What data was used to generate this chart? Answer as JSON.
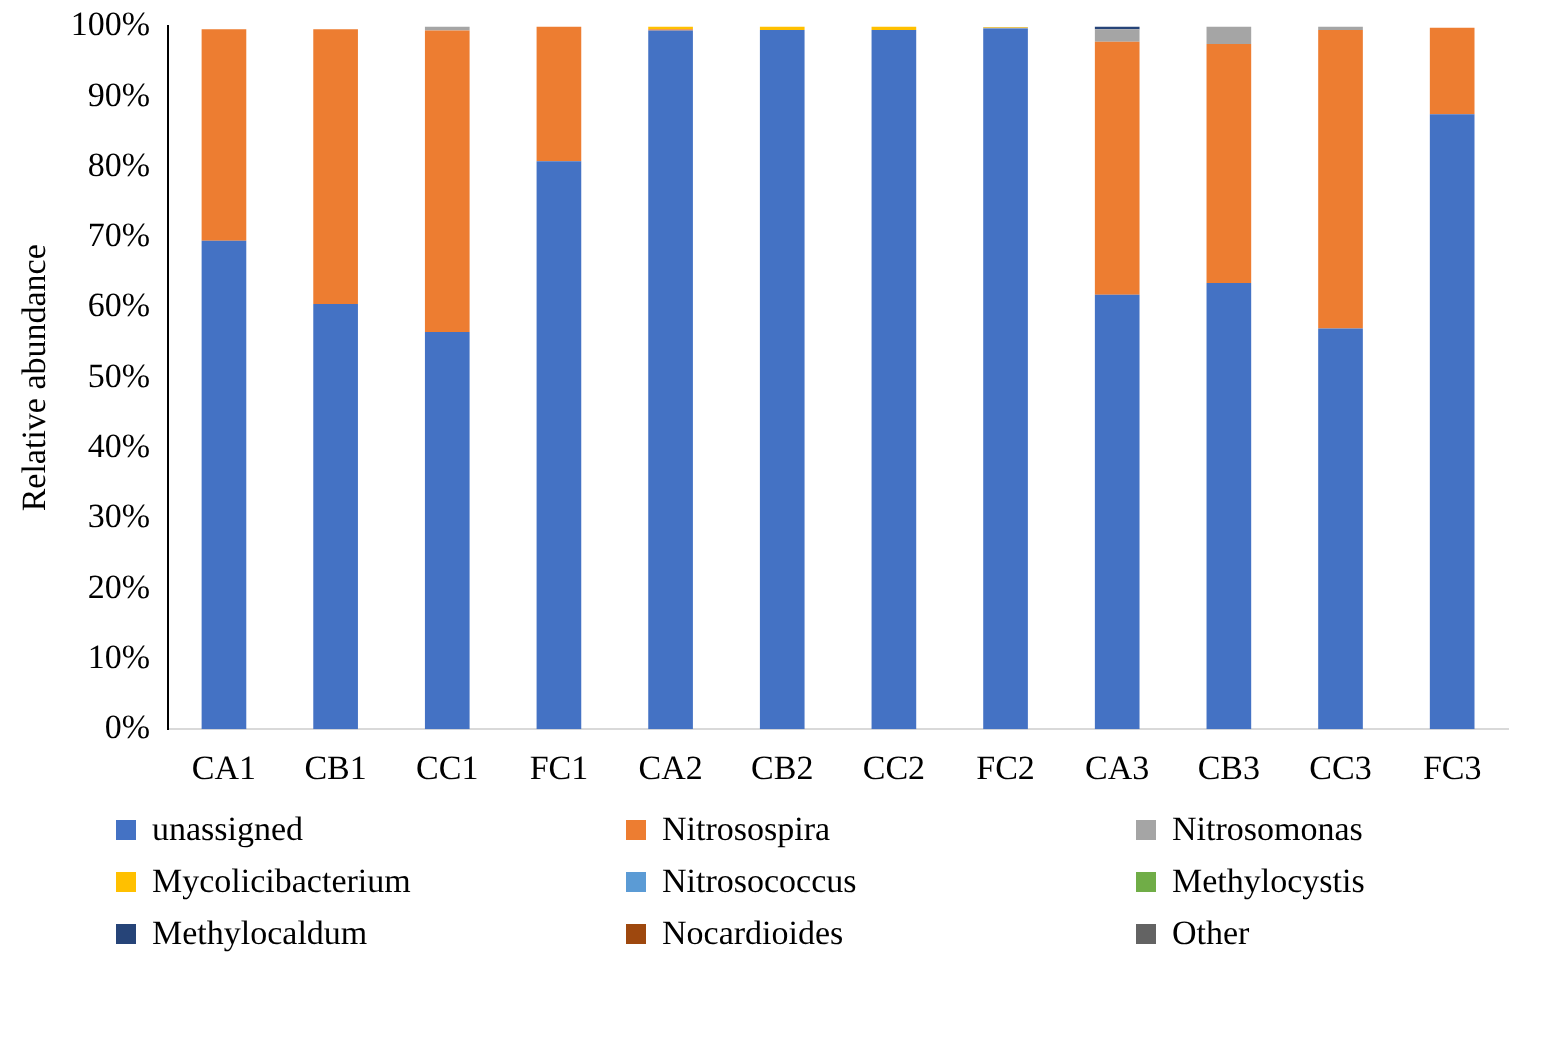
{
  "chart_data": {
    "type": "bar",
    "stacked": true,
    "ylabel": "Relative abundance",
    "categories": [
      "CA1",
      "CB1",
      "CC1",
      "FC1",
      "CA2",
      "CB2",
      "CC2",
      "FC2",
      "CA3",
      "CB3",
      "CC3",
      "FC3"
    ],
    "ylim": [
      0,
      100
    ],
    "yticks": [
      {
        "value": 0,
        "label": "0%"
      },
      {
        "value": 10,
        "label": "10%"
      },
      {
        "value": 20,
        "label": "20%"
      },
      {
        "value": 30,
        "label": "30%"
      },
      {
        "value": 40,
        "label": "40%"
      },
      {
        "value": 50,
        "label": "50%"
      },
      {
        "value": 60,
        "label": "60%"
      },
      {
        "value": 70,
        "label": "70%"
      },
      {
        "value": 80,
        "label": "80%"
      },
      {
        "value": 90,
        "label": "90%"
      },
      {
        "value": 100,
        "label": "100%"
      }
    ],
    "grid": false,
    "legend": "bottom",
    "series": [
      {
        "name": "unassigned",
        "color": "#4472c4",
        "values": [
          69.5,
          60.5,
          56.5,
          80.8,
          99.4,
          99.5,
          99.5,
          99.7,
          61.8,
          63.5,
          57,
          87.5
        ]
      },
      {
        "name": "Nitrosospira",
        "color": "#ed7d31",
        "values": [
          30.1,
          39.1,
          42.9,
          19.2,
          0.2,
          0,
          0,
          null,
          36,
          34,
          42.5,
          12.3
        ]
      },
      {
        "name": "Nitrosomonas",
        "color": "#a5a5a5",
        "values": [
          null,
          null,
          0.6,
          0,
          0,
          0,
          0,
          0.1,
          1.8,
          2.5,
          0.5,
          null
        ]
      },
      {
        "name": "Mycolicibacterium",
        "color": "#ffc000",
        "values": [
          0,
          0,
          0,
          0,
          0.4,
          0.5,
          0.5,
          0.1,
          0,
          0,
          0,
          0
        ]
      },
      {
        "name": "Nitrosococcus",
        "color": "#5b9bd5",
        "values": [
          0,
          0,
          0,
          0,
          0,
          0,
          0,
          0,
          0,
          0,
          0,
          0
        ]
      },
      {
        "name": "Methylocystis",
        "color": "#70ad47",
        "values": [
          0,
          0,
          0,
          0,
          0,
          0,
          0,
          0,
          0,
          0,
          0,
          0
        ]
      },
      {
        "name": "Methylocaldum",
        "color": "#264478",
        "values": [
          0,
          0,
          0,
          0,
          0,
          0,
          0,
          0,
          0.4,
          0,
          0,
          0
        ]
      },
      {
        "name": "Nocardioides",
        "color": "#9e480e",
        "values": [
          0,
          0,
          0,
          0,
          0,
          0,
          0,
          0,
          0,
          0,
          0,
          0
        ]
      },
      {
        "name": "Other",
        "color": "#636363",
        "values": [
          0,
          0,
          0,
          0,
          0,
          0,
          0,
          0,
          0,
          0,
          0,
          0
        ]
      }
    ]
  }
}
